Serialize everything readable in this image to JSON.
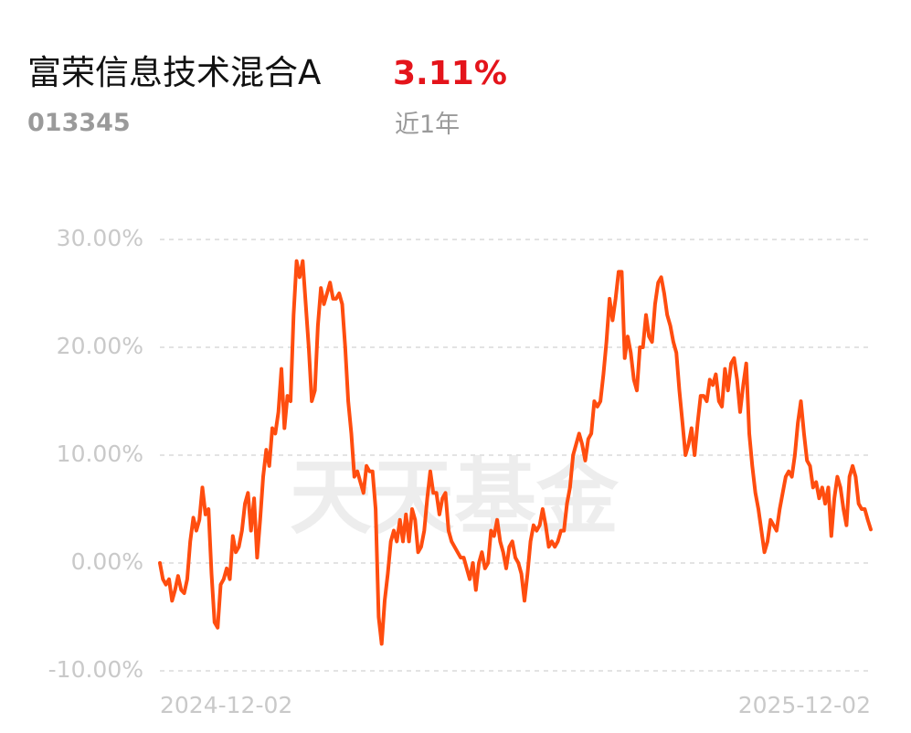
{
  "header": {
    "title": "富荣信息技术混合A",
    "change": "3.11%",
    "code": "013345",
    "period": "近1年"
  },
  "chart_data": {
    "type": "line",
    "watermark": "天天基金",
    "categories": [
      "2024-12-02",
      null,
      null,
      null,
      null,
      null,
      null,
      null,
      null,
      null,
      null,
      null,
      null,
      null,
      null,
      null,
      null,
      null,
      null,
      null,
      null,
      null,
      null,
      null,
      null,
      null,
      null,
      null,
      null,
      null,
      null,
      null,
      null,
      null,
      null,
      null,
      null,
      null,
      null,
      null,
      null,
      null,
      null,
      null,
      null,
      null,
      null,
      null,
      null,
      null,
      null,
      null,
      null,
      null,
      null,
      null,
      null,
      null,
      null,
      null,
      null,
      null,
      null,
      null,
      null,
      null,
      null,
      null,
      null,
      null,
      null,
      null,
      null,
      null,
      null,
      null,
      null,
      null,
      null,
      null,
      null,
      null,
      null,
      null,
      null,
      null,
      null,
      null,
      null,
      null,
      null,
      null,
      null,
      null,
      null,
      null,
      null,
      null,
      null,
      null,
      null,
      null,
      null,
      null,
      null,
      null,
      null,
      null,
      null,
      null,
      null,
      null,
      null,
      null,
      null,
      null,
      null,
      null,
      null,
      null,
      null,
      null,
      null,
      null,
      null,
      null,
      null,
      null,
      null,
      null,
      null,
      null,
      null,
      null,
      null,
      null,
      null,
      null,
      null,
      null,
      null,
      null,
      null,
      null,
      null,
      null,
      null,
      null,
      null,
      null,
      null,
      null,
      null,
      null,
      null,
      null,
      null,
      null,
      null,
      null,
      null,
      null,
      null,
      null,
      null,
      null,
      null,
      null,
      null,
      null,
      null,
      null,
      null,
      null,
      null,
      null,
      null,
      null,
      null,
      null,
      null,
      null,
      null,
      null,
      null,
      null,
      null,
      null,
      null,
      null,
      null,
      null,
      null,
      null,
      null,
      null,
      null,
      null,
      null,
      null,
      null,
      null,
      null,
      null,
      null,
      null,
      null,
      null,
      null,
      null,
      null,
      null,
      null,
      null,
      null,
      null,
      null,
      null,
      null,
      null,
      null,
      null,
      null,
      null,
      null,
      null,
      null,
      null,
      null,
      null,
      null,
      null,
      null,
      null,
      "2025-12-02"
    ],
    "series": [
      {
        "color": "#ff4d0f",
        "values": [
          0,
          -1.5,
          -2,
          -1.5,
          -3.5,
          -2.5,
          -1.2,
          -2.5,
          -2.8,
          -1.5,
          2,
          4.2,
          3,
          4,
          7,
          4.5,
          5,
          -1,
          -5.5,
          -6,
          -2,
          -1.5,
          -0.5,
          -1.5,
          2.5,
          1,
          1.5,
          3,
          5.5,
          6.5,
          3,
          6,
          0.5,
          4,
          8,
          10.5,
          9,
          12.5,
          12,
          14,
          18,
          12.5,
          15.5,
          15,
          23,
          28,
          26.5,
          28,
          24,
          20,
          15,
          16,
          22,
          25.5,
          24,
          25,
          26,
          24.5,
          24.5,
          25,
          24,
          20,
          15,
          12,
          8,
          8.5,
          7.5,
          6.5,
          9,
          8.5,
          8.5,
          5,
          -5,
          -7.5,
          -3.5,
          -1,
          2,
          3,
          2,
          4,
          2,
          4.5,
          2,
          5,
          4,
          1,
          1.5,
          3,
          6,
          8.5,
          6.5,
          6.5,
          4.5,
          6,
          6.5,
          3,
          2,
          1.5,
          1,
          0.5,
          0.5,
          -0.5,
          -1.5,
          0,
          -2.5,
          0,
          1,
          -0.5,
          0,
          3,
          2.5,
          4,
          2,
          1,
          -0.5,
          1.5,
          2,
          0.5,
          0,
          -1,
          -3.5,
          -1,
          2,
          3.5,
          3,
          3.5,
          5,
          3.5,
          1.5,
          2,
          1.5,
          2,
          3,
          3,
          5.5,
          7,
          10,
          11,
          12,
          11,
          9.5,
          11.5,
          12,
          15,
          14.5,
          15,
          17.5,
          20.5,
          24.5,
          22.5,
          24.5,
          27,
          27,
          19,
          21,
          19.5,
          17,
          16,
          20,
          20,
          23,
          21,
          20.5,
          24,
          26,
          26.5,
          25,
          23,
          22,
          20.5,
          19.5,
          16,
          13,
          10,
          11,
          12.5,
          10,
          13,
          15.5,
          15.5,
          15,
          17,
          16.5,
          17.5,
          15,
          14.5,
          18,
          16,
          18.5,
          19,
          17,
          14,
          16.5,
          18.5,
          12,
          9,
          6.5,
          5,
          3,
          1,
          2,
          4,
          3.5,
          3,
          5,
          6.5,
          8,
          8.5,
          8,
          10,
          13,
          15,
          12,
          9.5,
          9,
          7,
          7.5,
          6,
          7,
          5.5,
          7,
          2.5,
          6,
          8,
          7,
          5,
          3.5,
          8,
          9,
          8,
          5.5,
          5,
          5,
          4,
          3.11
        ]
      }
    ],
    "ylim": [
      -10,
      30
    ],
    "yticks": [
      {
        "value": -10,
        "label": "-10.00%"
      },
      {
        "value": 0,
        "label": "0.00%"
      },
      {
        "value": 10,
        "label": "10.00%"
      },
      {
        "value": 20,
        "label": "20.00%"
      },
      {
        "value": 30,
        "label": "30.00%"
      }
    ],
    "grid": true
  }
}
